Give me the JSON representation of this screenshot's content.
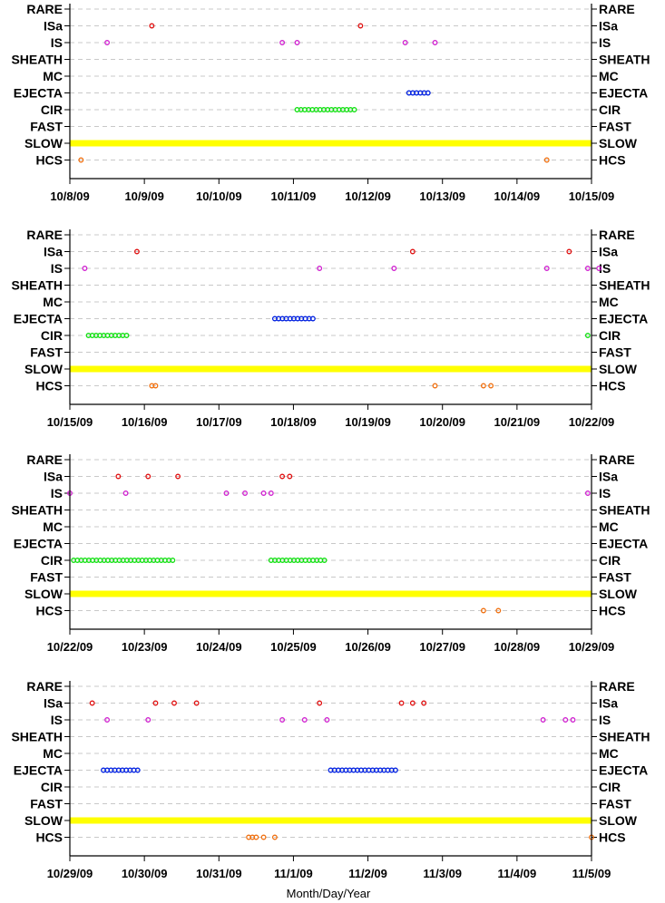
{
  "chart_data": {
    "type": "scatter",
    "xlabel": "Month/Day/Year",
    "categories": [
      "RARE",
      "ISa",
      "IS",
      "SHEATH",
      "MC",
      "EJECTA",
      "CIR",
      "FAST",
      "SLOW",
      "HCS"
    ],
    "colors": {
      "ISa": "#e01010",
      "IS": "#d020d0",
      "EJECTA": "#0020e0",
      "CIR": "#10e010",
      "SLOW": "#ffff00",
      "HCS": "#f07010",
      "grid": "#c8c8c8"
    },
    "panels": [
      {
        "xlim": [
          0,
          7
        ],
        "tick_labels": [
          "10/8/09",
          "10/9/09",
          "10/10/09",
          "10/11/09",
          "10/12/09",
          "10/13/09",
          "10/14/09",
          "10/15/09"
        ],
        "points": {
          "ISa": [
            1.1,
            3.9
          ],
          "IS": [
            0.5,
            2.85,
            3.05,
            4.5,
            4.9
          ],
          "HCS": [
            0.15,
            6.4
          ]
        },
        "bands": {
          "SLOW": [
            [
              0,
              7
            ]
          ],
          "CIR": [
            [
              3.05,
              3.85
            ]
          ],
          "EJECTA": [
            [
              4.55,
              4.85
            ]
          ]
        }
      },
      {
        "xlim": [
          0,
          7
        ],
        "tick_labels": [
          "10/15/09",
          "10/16/09",
          "10/17/09",
          "10/18/09",
          "10/19/09",
          "10/20/09",
          "10/21/09",
          "10/22/09"
        ],
        "points": {
          "ISa": [
            0.9,
            4.6,
            6.7
          ],
          "IS": [
            0.2,
            3.35,
            4.35,
            6.4,
            6.95,
            7.1
          ],
          "HCS": [
            1.1,
            1.15,
            4.9,
            5.55,
            5.65
          ]
        },
        "bands": {
          "SLOW": [
            [
              0,
              7
            ]
          ],
          "CIR": [
            [
              0.25,
              0.8
            ],
            [
              6.95,
              7.0
            ]
          ],
          "EJECTA": [
            [
              2.75,
              3.3
            ]
          ]
        }
      },
      {
        "xlim": [
          0,
          7
        ],
        "tick_labels": [
          "10/22/09",
          "10/23/09",
          "10/24/09",
          "10/25/09",
          "10/26/09",
          "10/27/09",
          "10/28/09",
          "10/29/09"
        ],
        "points": {
          "ISa": [
            0.65,
            1.05,
            1.45,
            2.85,
            2.95
          ],
          "IS": [
            0.0,
            0.75,
            2.1,
            2.35,
            2.6,
            2.7,
            6.95
          ],
          "HCS": [
            5.55,
            5.75
          ]
        },
        "bands": {
          "SLOW": [
            [
              0,
              7
            ]
          ],
          "CIR": [
            [
              0.05,
              1.4
            ],
            [
              2.7,
              3.45
            ]
          ]
        }
      },
      {
        "xlim": [
          0,
          7
        ],
        "tick_labels": [
          "10/29/09",
          "10/30/09",
          "10/31/09",
          "11/1/09",
          "11/2/09",
          "11/3/09",
          "11/4/09",
          "11/5/09"
        ],
        "points": {
          "ISa": [
            0.3,
            1.15,
            1.4,
            1.7,
            3.35,
            4.45,
            4.6,
            4.75
          ],
          "IS": [
            0.5,
            1.05,
            2.85,
            3.15,
            3.45,
            6.35,
            6.65,
            6.75
          ],
          "HCS": [
            2.4,
            2.45,
            2.5,
            2.6,
            2.75,
            7.0
          ]
        },
        "bands": {
          "SLOW": [
            [
              0,
              7
            ]
          ],
          "EJECTA": [
            [
              0.45,
              0.95
            ],
            [
              3.5,
              4.4
            ]
          ]
        }
      }
    ]
  }
}
